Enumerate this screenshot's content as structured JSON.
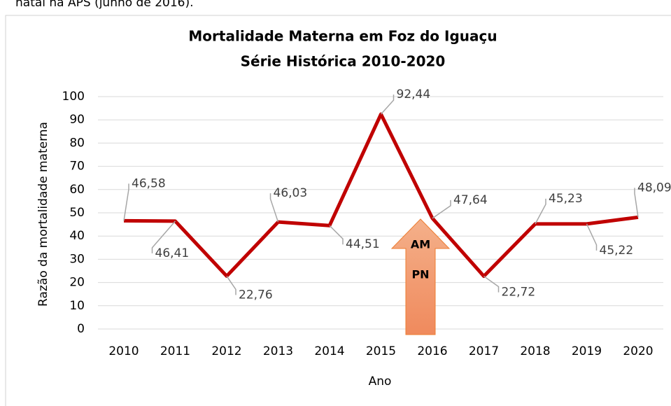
{
  "caption": "natal na APS (junho de 2016).",
  "chart_data": {
    "type": "line",
    "title": "Mortalidade Materna em Foz do Iguaçu",
    "subtitle": "Série Histórica  2010-2020",
    "x_label": "Ano",
    "y_label": "Razão da mortalidade materna",
    "categories": [
      "2010",
      "2011",
      "2012",
      "2013",
      "2014",
      "2015",
      "2016",
      "2017",
      "2018",
      "2019",
      "2020"
    ],
    "values": [
      46.58,
      46.41,
      22.76,
      46.03,
      44.51,
      92.44,
      47.64,
      22.72,
      45.23,
      45.22,
      48.09
    ],
    "value_labels": [
      "46,58",
      "46,41",
      "22,76",
      "46,03",
      "44,51",
      "92,44",
      "47,64",
      "22,72",
      "45,23",
      "45,22",
      "48,09"
    ],
    "color": "#c00000",
    "ylim": [
      0,
      100
    ],
    "yticks": [
      0,
      10,
      20,
      30,
      40,
      50,
      60,
      70,
      80,
      90,
      100
    ],
    "grid": true,
    "annotations": [
      "AM",
      "PN"
    ]
  }
}
